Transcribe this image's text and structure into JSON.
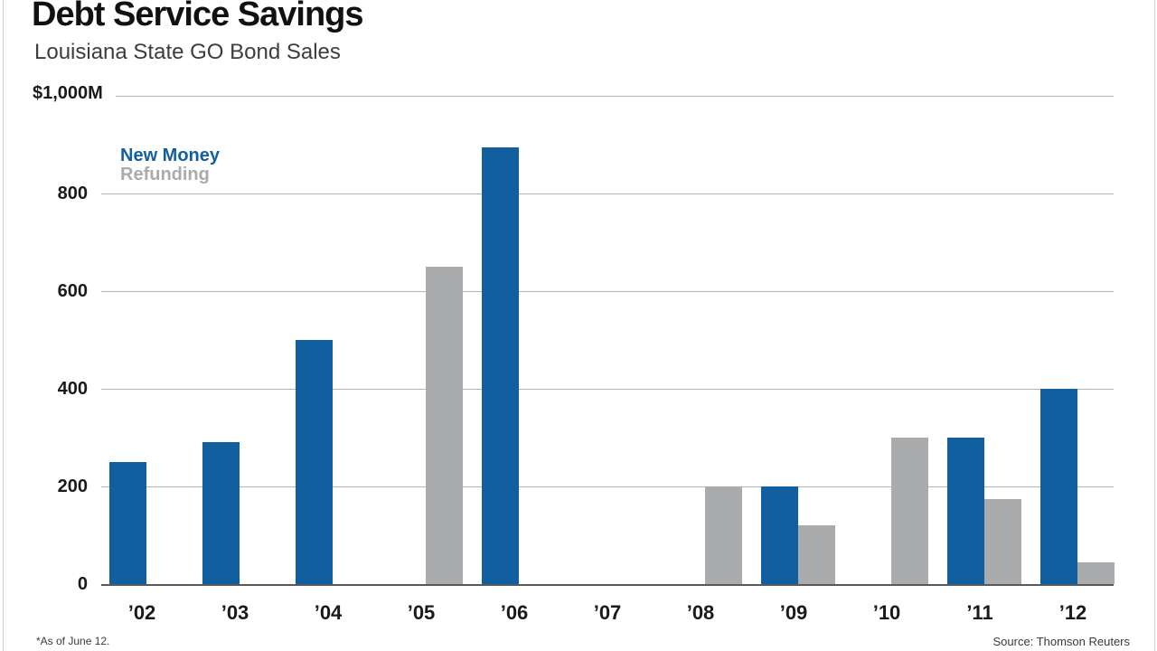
{
  "header": {
    "title": "Debt Service Savings",
    "subtitle": "Louisiana State GO Bond Sales"
  },
  "legend": {
    "new_money_label": "New Money",
    "refunding_label": "Refunding"
  },
  "footer": {
    "footnote": "*As of June 12.",
    "source": "Source: Thomson Reuters"
  },
  "colors": {
    "new_money": "#115F9E",
    "refunding": "#AAABAD",
    "gridline": "#B3B3B3",
    "axis": "#58595B"
  },
  "chart_data": {
    "type": "bar",
    "title": "Debt Service Savings",
    "subtitle": "Louisiana State GO Bond Sales",
    "categories": [
      "’02",
      "’03",
      "’04",
      "’05",
      "’06",
      "’07",
      "’08",
      "’09",
      "’10",
      "’11",
      "’12"
    ],
    "series": [
      {
        "name": "New Money",
        "color_key": "new_money",
        "values": [
          250,
          290,
          500,
          null,
          895,
          null,
          null,
          200,
          null,
          300,
          400
        ]
      },
      {
        "name": "Refunding",
        "color_key": "refunding",
        "values": [
          null,
          null,
          null,
          650,
          null,
          null,
          200,
          120,
          300,
          175,
          45
        ]
      }
    ],
    "ylabel": "",
    "xlabel": "",
    "ylim": [
      0,
      1000
    ],
    "yticks": [
      {
        "value": 1000,
        "label": "$1,000M"
      },
      {
        "value": 800,
        "label": "800"
      },
      {
        "value": 600,
        "label": "600"
      },
      {
        "value": 400,
        "label": "400"
      },
      {
        "value": 200,
        "label": "200"
      },
      {
        "value": 0,
        "label": "0"
      }
    ],
    "grid": "horizontal",
    "legend_position": "top-left-inside"
  }
}
